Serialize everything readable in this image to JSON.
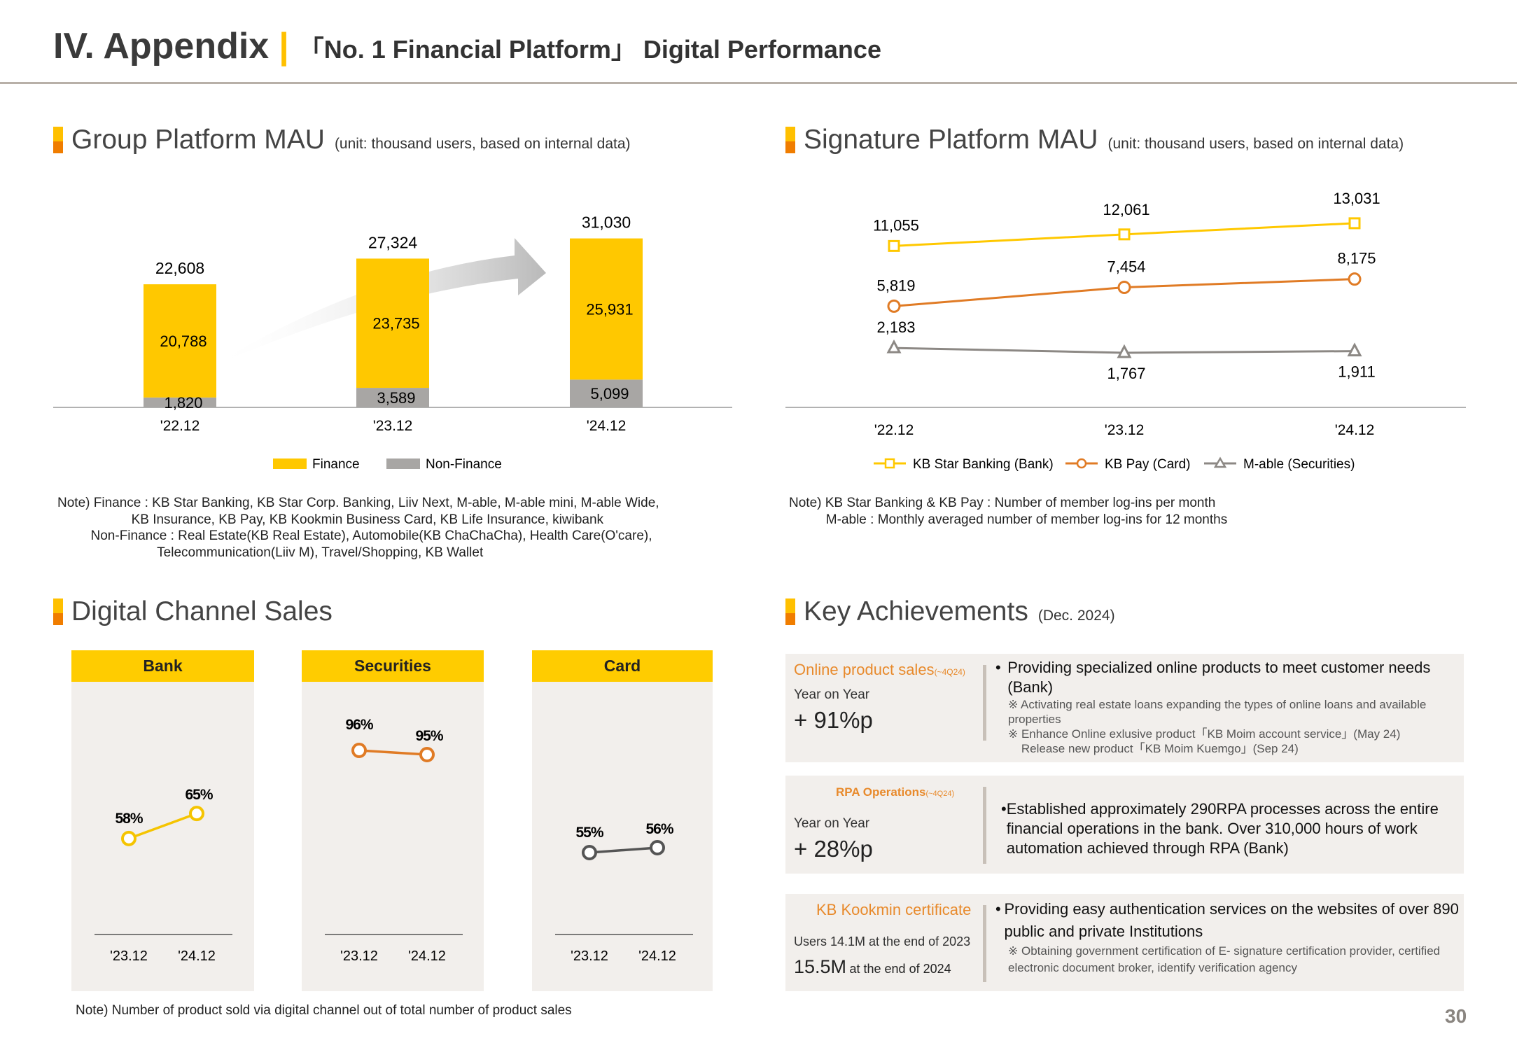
{
  "header": {
    "title": "IV. Appendix",
    "separator": "|",
    "subtitle": "「No. 1 Financial Platform」 Digital Performance"
  },
  "group_mau": {
    "title": "Group Platform MAU",
    "unit": "(unit: thousand users, based on internal data)",
    "note": "Note) Finance : KB Star Banking, KB Star Corp. Banking, Liiv Next, M-able, M-able mini, M-able Wide,\n                    KB Insurance, KB Pay, KB Kookmin Business Card, KB Life Insurance, kiwibank\n         Non-Finance : Real Estate(KB Real Estate), Automobile(KB ChaChaCha), Health Care(O'care),\n                           Telecommunication(Liiv M), Travel/Shopping, KB Wallet"
  },
  "signature_mau": {
    "title": "Signature Platform MAU",
    "unit": "(unit: thousand users, based on internal data)",
    "note": "Note) KB Star Banking & KB Pay : Number of member log-ins per month\n          M-able : Monthly averaged number of member log-ins for 12 months"
  },
  "digital_sales": {
    "title": "Digital Channel Sales",
    "note": "Note) Number of product sold via digital channel out of total number of product sales"
  },
  "key": {
    "title": "Key Achievements",
    "unit": "(Dec. 2024)",
    "items": [
      {
        "label": "Online product sales",
        "label_sub": "(~4Q24)",
        "metric_label": "Year on Year",
        "metric": "+ 91%p",
        "bullet": "Providing specialized online products to meet customer needs (Bank)",
        "subnotes": [
          "※ Activating real estate loans expanding the types of online loans and available properties",
          "※ Enhance Online exlusive product「KB Moim account service」(May 24)\n    Release new product「KB Moim Kuemgo」(Sep 24)"
        ]
      },
      {
        "label": "RPA Operations",
        "label_sub": "(~4Q24)",
        "metric_label": "Year on Year",
        "metric": "+ 28%p",
        "bullet": "Established approximately 290RPA processes across the entire financial operations in the bank. Over 310,000 hours of work automation achieved through RPA (Bank)",
        "subnotes": []
      },
      {
        "label": "KB Kookmin certificate",
        "metric_label": "Users 14.1M at the end of 2023",
        "metric": "15.5M",
        "metric_suffix": "at the end of 2024",
        "bullet": "Providing easy authentication services on the websites of over 890 public and private Institutions",
        "subnotes": [
          "※ Obtaining government certification of E- signature certification provider, certified electronic document broker, identify verification agency"
        ]
      }
    ]
  },
  "page_number": "30",
  "colors": {
    "yellow": "#ffc800",
    "orange": "#e07b25",
    "gray": "#a8a6a4",
    "dark_gray": "#5a5a5a",
    "panel": "#f2efec"
  },
  "chart_data": [
    {
      "type": "bar",
      "stacked": true,
      "categories": [
        "'22.12",
        "'23.12",
        "'24.12"
      ],
      "series": [
        {
          "name": "Finance",
          "values": [
            20788,
            23735,
            25931
          ],
          "color": "#ffc800"
        },
        {
          "name": "Non-Finance",
          "values": [
            1820,
            3589,
            5099
          ],
          "color": "#a8a6a4"
        }
      ],
      "totals": [
        "22,608",
        "27,324",
        "31,030"
      ],
      "totals_values": [
        22608,
        27324,
        31030
      ],
      "legend": "bottom"
    },
    {
      "type": "line",
      "categories": [
        "'22.12",
        "'23.12",
        "'24.12"
      ],
      "series": [
        {
          "name": "KB Star Banking (Bank)",
          "values": [
            11055,
            12061,
            13031
          ],
          "labels": [
            "11,055",
            "12,061",
            "13,031"
          ],
          "color": "#ffc800",
          "marker": "square"
        },
        {
          "name": "KB Pay (Card)",
          "values": [
            5819,
            7454,
            8175
          ],
          "labels": [
            "5,819",
            "7,454",
            "8,175"
          ],
          "color": "#e07b25",
          "marker": "circle"
        },
        {
          "name": "M-able (Securities)",
          "values": [
            2183,
            1767,
            1911
          ],
          "labels": [
            "2,183",
            "1,767",
            "1,911"
          ],
          "color": "#8c8884",
          "marker": "triangle"
        }
      ],
      "legend": "bottom"
    },
    {
      "type": "line",
      "panels": [
        {
          "title": "Bank",
          "categories": [
            "'23.12",
            "'24.12"
          ],
          "values": [
            58,
            65
          ],
          "labels": [
            "58%",
            "65%"
          ],
          "color": "#f5c400"
        },
        {
          "title": "Securities",
          "categories": [
            "'23.12",
            "'24.12"
          ],
          "values": [
            96,
            95
          ],
          "labels": [
            "96%",
            "95%"
          ],
          "color": "#e07b25"
        },
        {
          "title": "Card",
          "categories": [
            "'23.12",
            "'24.12"
          ],
          "values": [
            55,
            56
          ],
          "labels": [
            "55%",
            "56%"
          ],
          "color": "#555555"
        }
      ]
    }
  ]
}
